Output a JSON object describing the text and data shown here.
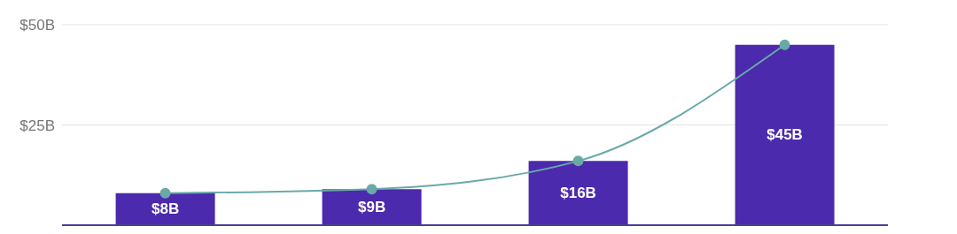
{
  "chart_data": {
    "type": "bar",
    "categories": [
      null,
      null,
      null,
      null
    ],
    "series": [
      {
        "color": "#4b2aad",
        "values": [
          8,
          9,
          16,
          45
        ],
        "value_labels": [
          "$8B",
          "$9B",
          "$16B",
          "$45B"
        ]
      },
      {
        "type": "line",
        "color": "#6aa9a8",
        "values": [
          8,
          9,
          16,
          45
        ],
        "marker": "circle"
      }
    ],
    "ylim": [
      0,
      50
    ],
    "yticks": [
      {
        "value": 25,
        "label": "$25B"
      },
      {
        "value": 50,
        "label": "$50B"
      }
    ],
    "grid": "y"
  }
}
